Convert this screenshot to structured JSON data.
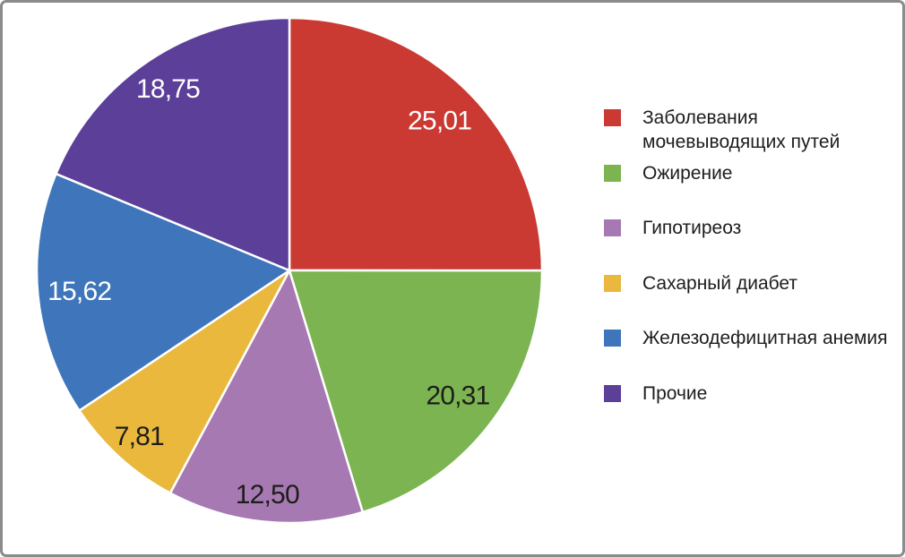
{
  "frame": {
    "background": "#ffffff",
    "border_color": "#8b8b8b"
  },
  "chart_data": {
    "type": "pie",
    "title": "",
    "legend_position": "right",
    "start_angle_deg": 0,
    "direction": "clockwise",
    "decimal_separator": ",",
    "total": 100.0,
    "value_labels": "inside",
    "slice_separator_color": "#ffffff",
    "slices": [
      {
        "label": "Заболевания мочевыводящих путей",
        "label_lines": [
          "Заболевания",
          "мочевыводящих путей"
        ],
        "value": 25.01,
        "display_value": "25,01",
        "color": "#cb3a32",
        "value_label_color": "#ffffff"
      },
      {
        "label": "Ожирение",
        "label_lines": [
          "Ожирение"
        ],
        "value": 20.31,
        "display_value": "20,31",
        "color": "#7bb450",
        "value_label_color": "#1d1d1b"
      },
      {
        "label": "Гипотиреоз",
        "label_lines": [
          "Гипотиреоз"
        ],
        "value": 12.5,
        "display_value": "12,50",
        "color": "#a679b2",
        "value_label_color": "#1d1d1b"
      },
      {
        "label": "Сахарный диабет",
        "label_lines": [
          "Сахарный диабет"
        ],
        "value": 7.81,
        "display_value": "7,81",
        "color": "#e9b83d",
        "value_label_color": "#1d1d1b"
      },
      {
        "label": "Железодефицитная анемия",
        "label_lines": [
          "Железодефицитная анемия"
        ],
        "value": 15.62,
        "display_value": "15,62",
        "color": "#3f75ba",
        "value_label_color": "#ffffff"
      },
      {
        "label": "Прочие",
        "label_lines": [
          "Прочие"
        ],
        "value": 18.75,
        "display_value": "18,75",
        "color": "#5b3f99",
        "value_label_color": "#ffffff"
      }
    ]
  }
}
